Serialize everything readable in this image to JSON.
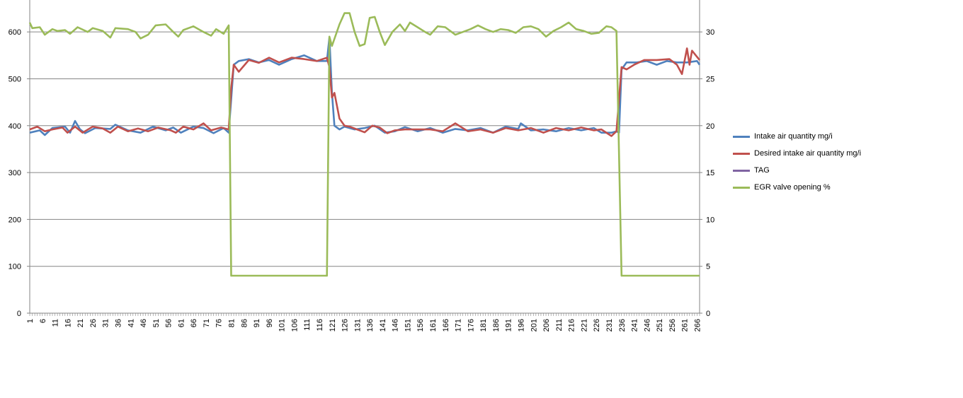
{
  "chart_data": {
    "type": "line",
    "title": "",
    "xlabel": "",
    "ylabel": "",
    "y_left_lim": [
      0,
      650
    ],
    "y_left_ticks": [
      0,
      100,
      200,
      300,
      400,
      500,
      600
    ],
    "y_right_lim": [
      0,
      32.5
    ],
    "y_right_ticks": [
      0,
      5,
      10,
      15,
      20,
      25,
      30
    ],
    "x_range": [
      1,
      267
    ],
    "x_tick_labels": [
      "1",
      "6",
      "11",
      "16",
      "21",
      "26",
      "31",
      "36",
      "41",
      "46",
      "51",
      "56",
      "61",
      "66",
      "71",
      "76",
      "81",
      "86",
      "91",
      "96",
      "101",
      "106",
      "111",
      "116",
      "121",
      "126",
      "131",
      "136",
      "141",
      "146",
      "151",
      "156",
      "161",
      "166",
      "171",
      "176",
      "181",
      "186",
      "191",
      "196",
      "201",
      "206",
      "211",
      "216",
      "221",
      "226",
      "231",
      "236",
      "241",
      "246",
      "251",
      "256",
      "261",
      "266"
    ],
    "grid": "horizontal",
    "legend_position": "right",
    "series": [
      {
        "name": "Intake air quantity mg/i",
        "color": "#4F81BD",
        "axis": "left",
        "points": [
          [
            1,
            385
          ],
          [
            5,
            390
          ],
          [
            7,
            380
          ],
          [
            10,
            395
          ],
          [
            15,
            398
          ],
          [
            17,
            385
          ],
          [
            19,
            410
          ],
          [
            21,
            392
          ],
          [
            23,
            384
          ],
          [
            27,
            395
          ],
          [
            33,
            393
          ],
          [
            35,
            402
          ],
          [
            40,
            390
          ],
          [
            45,
            385
          ],
          [
            50,
            398
          ],
          [
            55,
            390
          ],
          [
            58,
            396
          ],
          [
            61,
            385
          ],
          [
            66,
            398
          ],
          [
            70,
            395
          ],
          [
            74,
            384
          ],
          [
            78,
            395
          ],
          [
            80,
            385
          ],
          [
            82,
            530
          ],
          [
            84,
            538
          ],
          [
            88,
            542
          ],
          [
            92,
            535
          ],
          [
            96,
            540
          ],
          [
            100,
            530
          ],
          [
            105,
            542
          ],
          [
            110,
            550
          ],
          [
            115,
            538
          ],
          [
            119,
            538
          ],
          [
            120,
            588
          ],
          [
            121,
            470
          ],
          [
            122,
            400
          ],
          [
            124,
            392
          ],
          [
            126,
            398
          ],
          [
            130,
            392
          ],
          [
            134,
            395
          ],
          [
            138,
            400
          ],
          [
            142,
            385
          ],
          [
            146,
            388
          ],
          [
            150,
            397
          ],
          [
            155,
            388
          ],
          [
            160,
            395
          ],
          [
            165,
            385
          ],
          [
            170,
            393
          ],
          [
            175,
            390
          ],
          [
            180,
            395
          ],
          [
            185,
            385
          ],
          [
            190,
            398
          ],
          [
            195,
            393
          ],
          [
            196,
            405
          ],
          [
            200,
            390
          ],
          [
            205,
            392
          ],
          [
            210,
            388
          ],
          [
            215,
            395
          ],
          [
            220,
            390
          ],
          [
            225,
            395
          ],
          [
            228,
            385
          ],
          [
            232,
            385
          ],
          [
            234,
            388
          ],
          [
            235,
            385
          ],
          [
            236,
            520
          ],
          [
            238,
            535
          ],
          [
            242,
            535
          ],
          [
            246,
            538
          ],
          [
            250,
            530
          ],
          [
            254,
            538
          ],
          [
            258,
            535
          ],
          [
            262,
            535
          ],
          [
            266,
            538
          ],
          [
            267,
            530
          ]
        ]
      },
      {
        "name": "Desired intake air quantity  mg/i",
        "color": "#C0504D",
        "axis": "left",
        "points": [
          [
            1,
            392
          ],
          [
            4,
            398
          ],
          [
            7,
            388
          ],
          [
            10,
            392
          ],
          [
            14,
            396
          ],
          [
            16,
            385
          ],
          [
            19,
            398
          ],
          [
            22,
            385
          ],
          [
            26,
            398
          ],
          [
            30,
            394
          ],
          [
            33,
            385
          ],
          [
            36,
            398
          ],
          [
            40,
            388
          ],
          [
            44,
            394
          ],
          [
            48,
            388
          ],
          [
            52,
            396
          ],
          [
            57,
            390
          ],
          [
            59,
            385
          ],
          [
            62,
            398
          ],
          [
            66,
            392
          ],
          [
            70,
            405
          ],
          [
            73,
            390
          ],
          [
            77,
            396
          ],
          [
            80,
            392
          ],
          [
            81,
            480
          ],
          [
            82,
            530
          ],
          [
            84,
            515
          ],
          [
            88,
            540
          ],
          [
            92,
            534
          ],
          [
            96,
            545
          ],
          [
            100,
            535
          ],
          [
            105,
            545
          ],
          [
            110,
            542
          ],
          [
            115,
            538
          ],
          [
            119,
            545
          ],
          [
            120,
            525
          ],
          [
            121,
            460
          ],
          [
            122,
            470
          ],
          [
            124,
            415
          ],
          [
            126,
            400
          ],
          [
            128,
            398
          ],
          [
            131,
            392
          ],
          [
            134,
            386
          ],
          [
            137,
            400
          ],
          [
            140,
            396
          ],
          [
            143,
            384
          ],
          [
            146,
            390
          ],
          [
            150,
            392
          ],
          [
            155,
            392
          ],
          [
            160,
            392
          ],
          [
            165,
            388
          ],
          [
            170,
            405
          ],
          [
            175,
            388
          ],
          [
            180,
            392
          ],
          [
            185,
            385
          ],
          [
            190,
            395
          ],
          [
            195,
            390
          ],
          [
            200,
            395
          ],
          [
            205,
            385
          ],
          [
            210,
            395
          ],
          [
            215,
            390
          ],
          [
            220,
            396
          ],
          [
            225,
            390
          ],
          [
            228,
            392
          ],
          [
            232,
            378
          ],
          [
            234,
            388
          ],
          [
            236,
            525
          ],
          [
            238,
            520
          ],
          [
            241,
            530
          ],
          [
            245,
            540
          ],
          [
            250,
            540
          ],
          [
            255,
            542
          ],
          [
            258,
            530
          ],
          [
            260,
            510
          ],
          [
            262,
            565
          ],
          [
            263,
            530
          ],
          [
            264,
            560
          ],
          [
            267,
            540
          ]
        ]
      },
      {
        "name": "TAG",
        "color": "#8064A2",
        "axis": "left",
        "points": []
      },
      {
        "name": "EGR valve opening %",
        "color": "#9BBB59",
        "axis": "right",
        "points": [
          [
            1,
            31
          ],
          [
            2,
            30.4
          ],
          [
            5,
            30.5
          ],
          [
            7,
            29.7
          ],
          [
            10,
            30.3
          ],
          [
            12,
            30.1
          ],
          [
            15,
            30.2
          ],
          [
            17,
            29.8
          ],
          [
            20,
            30.5
          ],
          [
            24,
            30
          ],
          [
            26,
            30.4
          ],
          [
            30,
            30.1
          ],
          [
            33,
            29.4
          ],
          [
            35,
            30.4
          ],
          [
            40,
            30.3
          ],
          [
            43,
            30
          ],
          [
            45,
            29.3
          ],
          [
            48,
            29.7
          ],
          [
            51,
            30.7
          ],
          [
            55,
            30.8
          ],
          [
            58,
            30
          ],
          [
            60,
            29.5
          ],
          [
            62,
            30.2
          ],
          [
            66,
            30.6
          ],
          [
            70,
            30
          ],
          [
            73,
            29.6
          ],
          [
            75,
            30.3
          ],
          [
            78,
            29.8
          ],
          [
            80,
            30.7
          ],
          [
            81,
            4
          ],
          [
            82,
            4
          ],
          [
            100,
            4
          ],
          [
            119,
            4
          ],
          [
            120,
            29.5
          ],
          [
            121,
            28.5
          ],
          [
            124,
            30.8
          ],
          [
            126,
            32
          ],
          [
            128,
            32
          ],
          [
            130,
            30
          ],
          [
            132,
            28.5
          ],
          [
            134,
            28.7
          ],
          [
            136,
            31.5
          ],
          [
            138,
            31.6
          ],
          [
            140,
            30
          ],
          [
            142,
            28.6
          ],
          [
            145,
            30
          ],
          [
            148,
            30.8
          ],
          [
            150,
            30.1
          ],
          [
            152,
            31
          ],
          [
            155,
            30.5
          ],
          [
            158,
            30
          ],
          [
            160,
            29.7
          ],
          [
            163,
            30.6
          ],
          [
            166,
            30.5
          ],
          [
            170,
            29.7
          ],
          [
            173,
            30
          ],
          [
            176,
            30.3
          ],
          [
            179,
            30.7
          ],
          [
            182,
            30.3
          ],
          [
            185,
            30
          ],
          [
            188,
            30.3
          ],
          [
            191,
            30.2
          ],
          [
            194,
            29.9
          ],
          [
            197,
            30.5
          ],
          [
            200,
            30.6
          ],
          [
            203,
            30.3
          ],
          [
            206,
            29.5
          ],
          [
            209,
            30.1
          ],
          [
            212,
            30.5
          ],
          [
            215,
            31
          ],
          [
            218,
            30.3
          ],
          [
            221,
            30.1
          ],
          [
            224,
            29.8
          ],
          [
            227,
            29.9
          ],
          [
            230,
            30.6
          ],
          [
            232,
            30.5
          ],
          [
            234,
            30.1
          ],
          [
            236,
            4
          ],
          [
            240,
            4
          ],
          [
            250,
            4
          ],
          [
            260,
            4
          ],
          [
            267,
            4
          ]
        ]
      }
    ]
  }
}
